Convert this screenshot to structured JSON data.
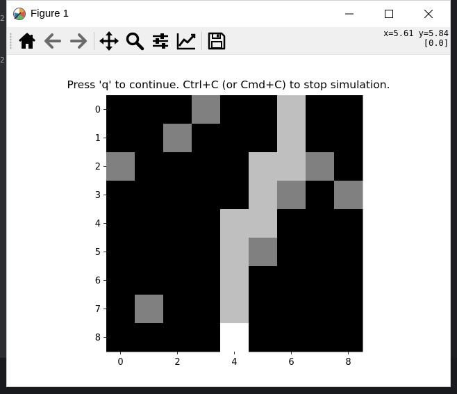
{
  "window": {
    "title": "Figure 1",
    "controls": [
      "minimize",
      "maximize",
      "close"
    ]
  },
  "toolbar": {
    "buttons": [
      {
        "name": "home",
        "icon": "home-icon"
      },
      {
        "name": "back",
        "icon": "back-arrow-icon"
      },
      {
        "name": "forward",
        "icon": "forward-arrow-icon"
      },
      {
        "name": "pan",
        "icon": "move-icon"
      },
      {
        "name": "zoom",
        "icon": "magnifier-icon"
      },
      {
        "name": "subplots",
        "icon": "sliders-icon"
      },
      {
        "name": "edit-axis",
        "icon": "line-chart-icon"
      },
      {
        "name": "save",
        "icon": "floppy-disk-icon"
      }
    ],
    "coords_line1": "x=5.61 y=5.84",
    "coords_line2": "[0.0]"
  },
  "background": {
    "marks": [
      "2",
      "2"
    ]
  },
  "colors": {
    "black": "#000000",
    "gray": "#808080",
    "light": "#c0c0c0",
    "white": "#ffffff"
  },
  "chart_data": {
    "type": "heatmap",
    "title": "Press 'q' to continue. Ctrl+C (or Cmd+C) to stop simulation.",
    "colormap": "gray",
    "vmin": 0.0,
    "vmax": 1.0,
    "xlim": [
      -0.5,
      8.5
    ],
    "ylim": [
      8.5,
      -0.5
    ],
    "x_ticks": [
      0,
      2,
      4,
      6,
      8
    ],
    "y_ticks": [
      0,
      1,
      2,
      3,
      4,
      5,
      6,
      7,
      8
    ],
    "grid": false,
    "matrix": [
      [
        0,
        0,
        0,
        0.5,
        0,
        0,
        0.75,
        0,
        0
      ],
      [
        0,
        0,
        0.5,
        0,
        0,
        0,
        0.75,
        0,
        0
      ],
      [
        0.5,
        0,
        0,
        0,
        0,
        0.75,
        0.75,
        0.5,
        0
      ],
      [
        0,
        0,
        0,
        0,
        0,
        0.75,
        0.5,
        0,
        0.5
      ],
      [
        0,
        0,
        0,
        0,
        0.75,
        0.75,
        0,
        0,
        0
      ],
      [
        0,
        0,
        0,
        0,
        0.75,
        0.5,
        0,
        0,
        0
      ],
      [
        0,
        0,
        0,
        0,
        0.75,
        0,
        0,
        0,
        0
      ],
      [
        0,
        0.5,
        0,
        0,
        0.75,
        0,
        0,
        0,
        0
      ],
      [
        0,
        0,
        0,
        0,
        1.0,
        0,
        0,
        0,
        0
      ]
    ]
  }
}
